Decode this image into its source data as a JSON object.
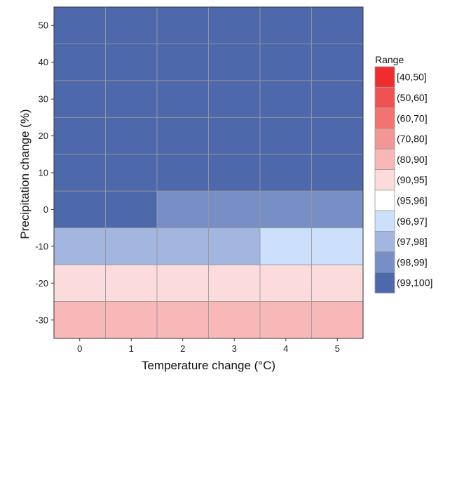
{
  "chart_data": {
    "type": "heatmap",
    "title": "",
    "xlabel": "Temperature change (°C)",
    "ylabel": "Precipitation change (%)",
    "x": [
      0,
      1,
      2,
      3,
      4,
      5
    ],
    "y": [
      50,
      40,
      30,
      20,
      10,
      0,
      -10,
      -20,
      -30
    ],
    "xlim": [
      -0.5,
      5.5
    ],
    "ylim": [
      -35,
      55
    ],
    "x_ticks": [
      "0",
      "1",
      "2",
      "3",
      "4",
      "5"
    ],
    "y_ticks": [
      "50",
      "40",
      "30",
      "20",
      "10",
      "0",
      "-10",
      "-20",
      "-30"
    ],
    "grid": true,
    "legend_position": "right",
    "legend": {
      "title": "Range",
      "bins": [
        {
          "label": "[40,50]",
          "color": "#ee2e2e"
        },
        {
          "label": "(50,60]",
          "color": "#f05151"
        },
        {
          "label": "(60,70]",
          "color": "#f37373"
        },
        {
          "label": "(70,80]",
          "color": "#f59696"
        },
        {
          "label": "(80,90]",
          "color": "#f8b8b8"
        },
        {
          "label": "(90,95]",
          "color": "#fbdbdb"
        },
        {
          "label": "(95,96]",
          "color": "#ffffff"
        },
        {
          "label": "(96,97]",
          "color": "#cce0fc"
        },
        {
          "label": "(97,98]",
          "color": "#a2b6e0"
        },
        {
          "label": "(98,99]",
          "color": "#778fc5"
        },
        {
          "label": "(99,100]",
          "color": "#4d68ab"
        }
      ]
    },
    "cells": [
      [
        "(99,100]",
        "(99,100]",
        "(99,100]",
        "(99,100]",
        "(99,100]",
        "(99,100]"
      ],
      [
        "(99,100]",
        "(99,100]",
        "(99,100]",
        "(99,100]",
        "(99,100]",
        "(99,100]"
      ],
      [
        "(99,100]",
        "(99,100]",
        "(99,100]",
        "(99,100]",
        "(99,100]",
        "(99,100]"
      ],
      [
        "(99,100]",
        "(99,100]",
        "(99,100]",
        "(99,100]",
        "(99,100]",
        "(99,100]"
      ],
      [
        "(99,100]",
        "(99,100]",
        "(99,100]",
        "(99,100]",
        "(99,100]",
        "(99,100]"
      ],
      [
        "(99,100]",
        "(99,100]",
        "(98,99]",
        "(98,99]",
        "(98,99]",
        "(98,99]"
      ],
      [
        "(97,98]",
        "(97,98]",
        "(97,98]",
        "(97,98]",
        "(96,97]",
        "(96,97]"
      ],
      [
        "(90,95]",
        "(90,95]",
        "(90,95]",
        "(90,95]",
        "(90,95]",
        "(90,95]"
      ],
      [
        "(80,90]",
        "(80,90]",
        "(80,90]",
        "(80,90]",
        "(80,90]",
        "(80,90]"
      ]
    ]
  }
}
